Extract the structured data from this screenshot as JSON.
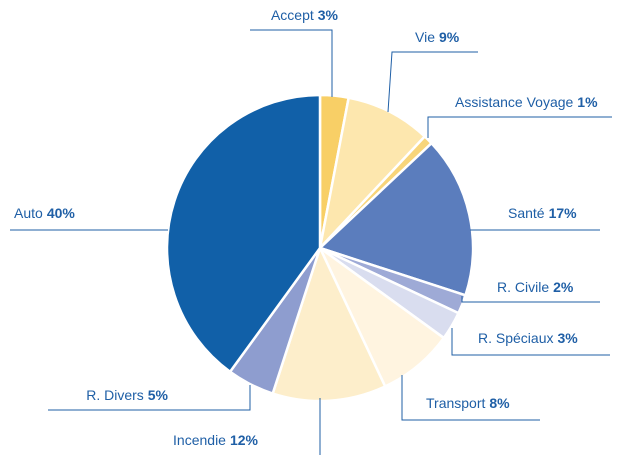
{
  "chart_data": {
    "type": "pie",
    "categories": [
      "Accept",
      "Vie",
      "Assistance Voyage",
      "Santé",
      "R. Civile",
      "R. Spéciaux",
      "Transport",
      "Incendie",
      "R. Divers",
      "Auto"
    ],
    "values": [
      3,
      9,
      1,
      17,
      2,
      3,
      8,
      12,
      5,
      40
    ],
    "value_labels": [
      "3%",
      "9%",
      "1%",
      "17%",
      "2%",
      "3%",
      "8%",
      "12%",
      "5%",
      "40%"
    ],
    "colors": [
      "#f8cf66",
      "#fde7ae",
      "#f8d57a",
      "#5b7dbd",
      "#9eaad6",
      "#d9ddef",
      "#fff4e0",
      "#fdeecb",
      "#8e9dcf",
      "#1160a8"
    ]
  }
}
